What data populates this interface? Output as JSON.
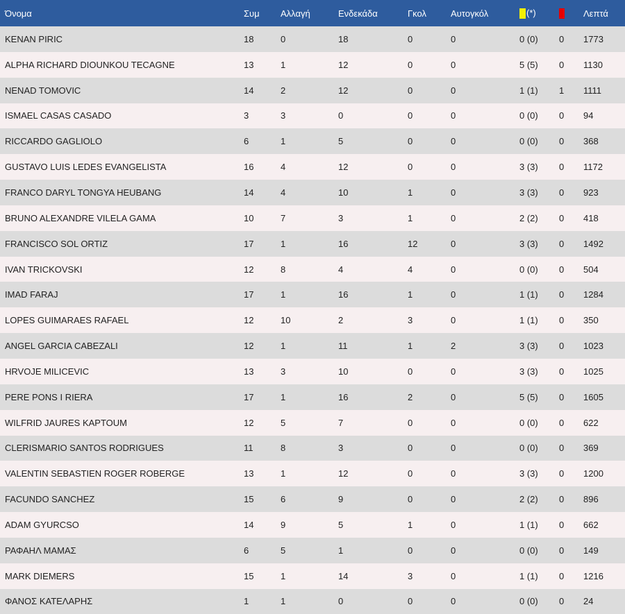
{
  "colors": {
    "header_bg": "#2e5c9e",
    "row_odd": "#dcdcdc",
    "row_even": "#f7eff0",
    "yellow_card": "#f6f000",
    "red_card": "#e60000"
  },
  "headers": {
    "name": "Όνομα",
    "appearances": "Συμ",
    "substitutions": "Αλλαγή",
    "starting": "Ενδεκάδα",
    "goals": "Γκολ",
    "own_goals": "Αυτογκόλ",
    "yellow_suffix": "(*)",
    "minutes": "Λεπτά"
  },
  "icons": {
    "yellow": "yellow-card-icon",
    "red": "red-card-icon"
  },
  "players": [
    {
      "name": "KENAN PIRIC",
      "app": "18",
      "sub": "0",
      "start": "18",
      "goals": "0",
      "own": "0",
      "yellow": "0 (0)",
      "red": "0",
      "min": "1773"
    },
    {
      "name": "ALPHA RICHARD DIOUNKOU TECAGNE",
      "app": "13",
      "sub": "1",
      "start": "12",
      "goals": "0",
      "own": "0",
      "yellow": "5 (5)",
      "red": "0",
      "min": "1130"
    },
    {
      "name": "NENAD TOMOVIC",
      "app": "14",
      "sub": "2",
      "start": "12",
      "goals": "0",
      "own": "0",
      "yellow": "1 (1)",
      "red": "1",
      "min": "1111"
    },
    {
      "name": "ISMAEL CASAS CASADO",
      "app": "3",
      "sub": "3",
      "start": "0",
      "goals": "0",
      "own": "0",
      "yellow": "0 (0)",
      "red": "0",
      "min": "94"
    },
    {
      "name": "RICCARDO GAGLIOLO",
      "app": "6",
      "sub": "1",
      "start": "5",
      "goals": "0",
      "own": "0",
      "yellow": "0 (0)",
      "red": "0",
      "min": "368"
    },
    {
      "name": "GUSTAVO LUIS LEDES EVANGELISTA",
      "app": "16",
      "sub": "4",
      "start": "12",
      "goals": "0",
      "own": "0",
      "yellow": "3 (3)",
      "red": "0",
      "min": "1172"
    },
    {
      "name": "FRANCO DARYL TONGYA HEUBANG",
      "app": "14",
      "sub": "4",
      "start": "10",
      "goals": "1",
      "own": "0",
      "yellow": "3 (3)",
      "red": "0",
      "min": "923"
    },
    {
      "name": "BRUNO ALEXANDRE VILELA GAMA",
      "app": "10",
      "sub": "7",
      "start": "3",
      "goals": "1",
      "own": "0",
      "yellow": "2 (2)",
      "red": "0",
      "min": "418"
    },
    {
      "name": "FRANCISCO SOL ORTIZ",
      "app": "17",
      "sub": "1",
      "start": "16",
      "goals": "12",
      "own": "0",
      "yellow": "3 (3)",
      "red": "0",
      "min": "1492"
    },
    {
      "name": "IVAN TRICKOVSKI",
      "app": "12",
      "sub": "8",
      "start": "4",
      "goals": "4",
      "own": "0",
      "yellow": "0 (0)",
      "red": "0",
      "min": "504"
    },
    {
      "name": "IMAD FARAJ",
      "app": "17",
      "sub": "1",
      "start": "16",
      "goals": "1",
      "own": "0",
      "yellow": "1 (1)",
      "red": "0",
      "min": "1284"
    },
    {
      "name": "LOPES GUIMARAES RAFAEL",
      "app": "12",
      "sub": "10",
      "start": "2",
      "goals": "3",
      "own": "0",
      "yellow": "1 (1)",
      "red": "0",
      "min": "350"
    },
    {
      "name": "ANGEL GARCIA CABEZALI",
      "app": "12",
      "sub": "1",
      "start": "11",
      "goals": "1",
      "own": "2",
      "yellow": "3 (3)",
      "red": "0",
      "min": "1023"
    },
    {
      "name": "HRVOJE MILICEVIC",
      "app": "13",
      "sub": "3",
      "start": "10",
      "goals": "0",
      "own": "0",
      "yellow": "3 (3)",
      "red": "0",
      "min": "1025"
    },
    {
      "name": "PERE PONS I RIERA",
      "app": "17",
      "sub": "1",
      "start": "16",
      "goals": "2",
      "own": "0",
      "yellow": "5 (5)",
      "red": "0",
      "min": "1605"
    },
    {
      "name": "WILFRID JAURES KAPTOUM",
      "app": "12",
      "sub": "5",
      "start": "7",
      "goals": "0",
      "own": "0",
      "yellow": "0 (0)",
      "red": "0",
      "min": "622"
    },
    {
      "name": "CLERISMARIO SANTOS RODRIGUES",
      "app": "11",
      "sub": "8",
      "start": "3",
      "goals": "0",
      "own": "0",
      "yellow": "0 (0)",
      "red": "0",
      "min": "369"
    },
    {
      "name": "VALENTIN SEBASTIEN ROGER ROBERGE",
      "app": "13",
      "sub": "1",
      "start": "12",
      "goals": "0",
      "own": "0",
      "yellow": "3 (3)",
      "red": "0",
      "min": "1200"
    },
    {
      "name": "FACUNDO SANCHEZ",
      "app": "15",
      "sub": "6",
      "start": "9",
      "goals": "0",
      "own": "0",
      "yellow": "2 (2)",
      "red": "0",
      "min": "896"
    },
    {
      "name": "ADAM GYURCSO",
      "app": "14",
      "sub": "9",
      "start": "5",
      "goals": "1",
      "own": "0",
      "yellow": "1 (1)",
      "red": "0",
      "min": "662"
    },
    {
      "name": "ΡΑΦΑΗΛ ΜΑΜΑΣ",
      "app": "6",
      "sub": "5",
      "start": "1",
      "goals": "0",
      "own": "0",
      "yellow": "0 (0)",
      "red": "0",
      "min": "149"
    },
    {
      "name": "MARK DIEMERS",
      "app": "15",
      "sub": "1",
      "start": "14",
      "goals": "3",
      "own": "0",
      "yellow": "1 (1)",
      "red": "0",
      "min": "1216"
    },
    {
      "name": "ΦΑΝΟΣ ΚΑΤΕΛΑΡΗΣ",
      "app": "1",
      "sub": "1",
      "start": "0",
      "goals": "0",
      "own": "0",
      "yellow": "0 (0)",
      "red": "0",
      "min": "24"
    }
  ]
}
